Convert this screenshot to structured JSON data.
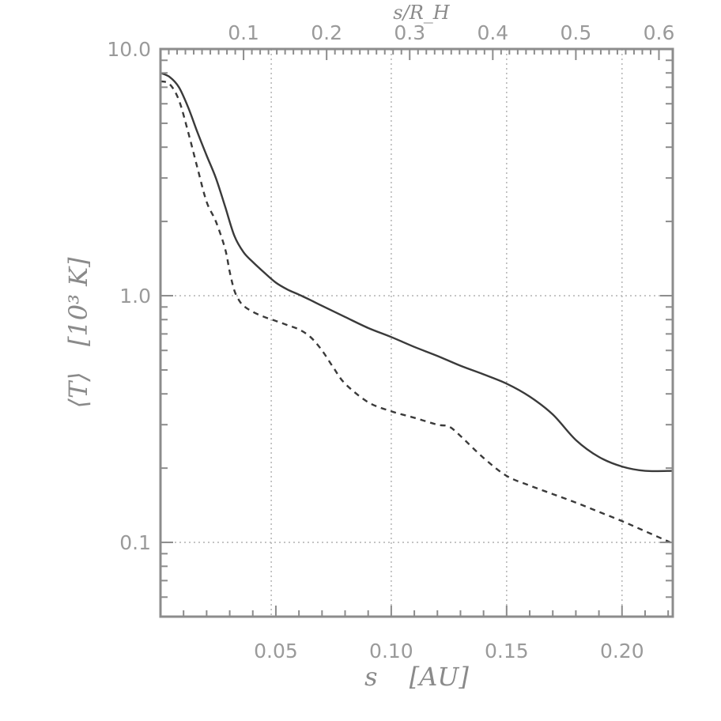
{
  "chart_data": {
    "type": "line",
    "x_scale": "linear",
    "y_scale": "log",
    "xlim": [
      0.0,
      0.222
    ],
    "ylim": [
      0.05,
      10.0
    ],
    "xlabel": "s",
    "xlabel_unit": "[AU]",
    "ylabel": "⟨T⟩",
    "ylabel_unit": "[10³ K]",
    "top_xlabel": "s/R_H",
    "x_ticks": [
      {
        "value": 0.05,
        "label": "0.05"
      },
      {
        "value": 0.1,
        "label": "0.10"
      },
      {
        "value": 0.15,
        "label": "0.15"
      },
      {
        "value": 0.2,
        "label": "0.20"
      }
    ],
    "y_ticks": [
      {
        "value": 10.0,
        "label": "10.0"
      },
      {
        "value": 1.0,
        "label": "1.0"
      },
      {
        "value": 0.1,
        "label": "0.1"
      }
    ],
    "top_ticks": [
      {
        "value": 0.1,
        "label": "0.1"
      },
      {
        "value": 0.2,
        "label": "0.2"
      },
      {
        "value": 0.3,
        "label": "0.3"
      },
      {
        "value": 0.4,
        "label": "0.4"
      },
      {
        "value": 0.5,
        "label": "0.5"
      },
      {
        "value": 0.6,
        "label": "0.6"
      }
    ],
    "top_scale_s_per_unit": 0.36,
    "grid_x": [
      0.048,
      0.1,
      0.15,
      0.2
    ],
    "grid_y": [
      1.0,
      0.1
    ],
    "series": [
      {
        "style": "solid",
        "x": [
          0.0,
          0.004,
          0.008,
          0.012,
          0.016,
          0.02,
          0.024,
          0.028,
          0.032,
          0.036,
          0.04,
          0.045,
          0.05,
          0.055,
          0.06,
          0.065,
          0.07,
          0.08,
          0.09,
          0.1,
          0.11,
          0.12,
          0.13,
          0.14,
          0.15,
          0.16,
          0.17,
          0.18,
          0.19,
          0.2,
          0.21,
          0.222
        ],
        "y": [
          8.0,
          7.7,
          7.0,
          5.8,
          4.6,
          3.7,
          3.0,
          2.3,
          1.75,
          1.5,
          1.37,
          1.24,
          1.13,
          1.06,
          1.01,
          0.96,
          0.91,
          0.82,
          0.74,
          0.68,
          0.62,
          0.57,
          0.52,
          0.48,
          0.44,
          0.39,
          0.33,
          0.26,
          0.222,
          0.203,
          0.195,
          0.195
        ]
      },
      {
        "style": "dashed",
        "x": [
          0.0,
          0.004,
          0.008,
          0.012,
          0.016,
          0.02,
          0.024,
          0.028,
          0.03,
          0.032,
          0.034,
          0.036,
          0.04,
          0.045,
          0.05,
          0.055,
          0.06,
          0.065,
          0.07,
          0.075,
          0.08,
          0.09,
          0.1,
          0.11,
          0.12,
          0.125,
          0.13,
          0.14,
          0.15,
          0.16,
          0.17,
          0.18,
          0.19,
          0.2,
          0.21,
          0.222
        ],
        "y": [
          7.4,
          7.2,
          6.2,
          4.6,
          3.3,
          2.4,
          2.0,
          1.55,
          1.25,
          1.05,
          0.96,
          0.91,
          0.86,
          0.82,
          0.79,
          0.76,
          0.73,
          0.68,
          0.6,
          0.51,
          0.44,
          0.37,
          0.34,
          0.32,
          0.3,
          0.295,
          0.27,
          0.22,
          0.186,
          0.17,
          0.157,
          0.145,
          0.133,
          0.122,
          0.111,
          0.099
        ]
      }
    ]
  }
}
